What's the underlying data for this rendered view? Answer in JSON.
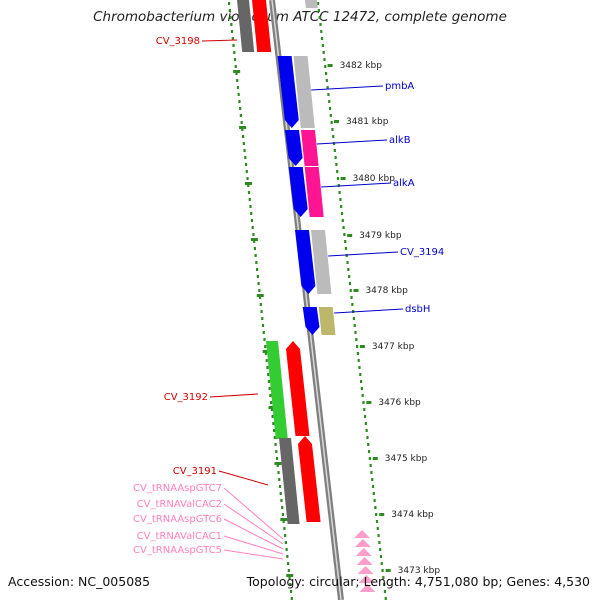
{
  "title": "Chromobacterium violaceum ATCC 12472, complete genome",
  "footer": {
    "accession": "Accession: NC_005085",
    "summary": "Topology: circular; Length: 4,751,080 bp; Genes: 4,530"
  },
  "colors": {
    "backbone": "#7f7f7f",
    "tick": "#2e8b22",
    "forward_label": "#0000cc",
    "reverse_label": "#d40000",
    "trna_label": "#ff80c0"
  },
  "kbp_labels": [
    "3482 kbp",
    "3481 kbp",
    "3480 kbp",
    "3479 kbp",
    "3478 kbp",
    "3477 kbp",
    "3476 kbp",
    "3475 kbp",
    "3474 kbp",
    "3473 kbp"
  ],
  "forward_genes": [
    {
      "name": "pmbA",
      "color": "#0000ee"
    },
    {
      "name": "alkB",
      "color": "#0000ee"
    },
    {
      "name": "alkA",
      "color": "#0000ee"
    },
    {
      "name": "CV_3194",
      "color": "#0000ee"
    },
    {
      "name": "dsbH",
      "color": "#0000ee"
    }
  ],
  "reverse_genes": [
    {
      "name": "CV_3198",
      "color": "#ff0000"
    },
    {
      "name": "CV_3192",
      "color": "#ff0000"
    },
    {
      "name": "CV_3191",
      "color": "#ff0000"
    }
  ],
  "trna_genes": [
    "CV_tRNAAspGTC7",
    "CV_tRNAValCAC2",
    "CV_tRNAAspGTC6",
    "CV_tRNAValCAC1",
    "CV_tRNAAspGTC5"
  ]
}
